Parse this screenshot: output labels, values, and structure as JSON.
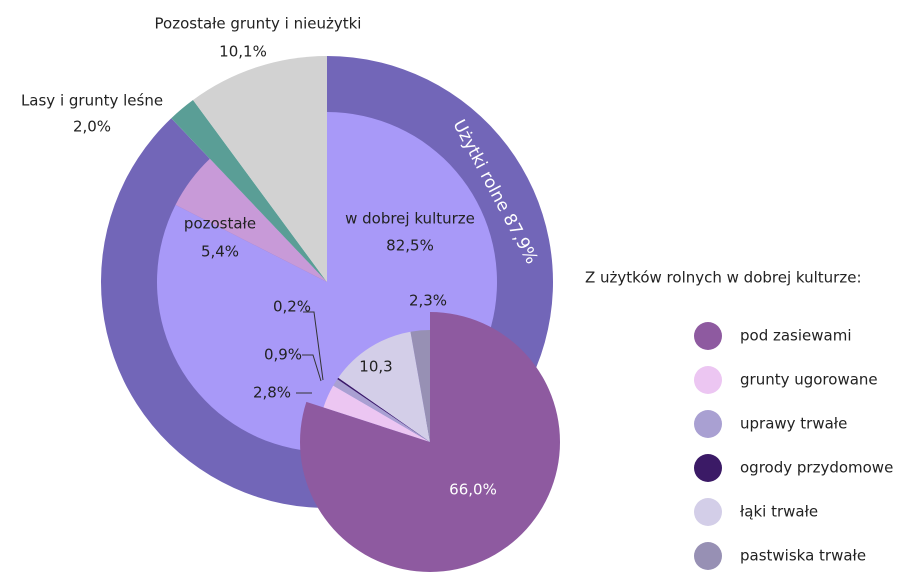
{
  "chart_data": [
    {
      "type": "pie",
      "categories": [
        "Użytki rolne",
        "Lasy i grunty leśne",
        "Pozostałe grunty i nieużytki"
      ],
      "values": [
        87.9,
        2.0,
        10.1
      ],
      "value_labels": [
        "87,9%",
        "2,0%",
        "10,1%"
      ],
      "colors": [
        "#7266b8",
        "#5a9e96",
        "#d2d2d2"
      ]
    },
    {
      "type": "pie",
      "categories": [
        "w dobrej kulturze",
        "pozostałe"
      ],
      "values": [
        82.5,
        5.4
      ],
      "value_labels": [
        "82,5%",
        "5,4%"
      ],
      "colors": [
        "#a899f8",
        "#c89ad8"
      ]
    },
    {
      "type": "pie",
      "legend_title": "Z użytków rolnych w dobrej kulturze:",
      "categories": [
        "pod zasiewami",
        "grunty ugorowane",
        "uprawy trwałe",
        "ogrody przydomowe",
        "łąki trwałe",
        "pastwiska trwałe"
      ],
      "values": [
        66.0,
        2.8,
        0.9,
        0.2,
        10.3,
        2.3
      ],
      "value_labels": [
        "66,0%",
        "2,8%",
        "0,9%",
        "0,2%",
        "10,3",
        "2,3%"
      ],
      "colors": [
        "#8e5aa0",
        "#ecc6f2",
        "#a9a0d2",
        "#3b1a66",
        "#d3cee8",
        "#9790b4"
      ]
    }
  ]
}
